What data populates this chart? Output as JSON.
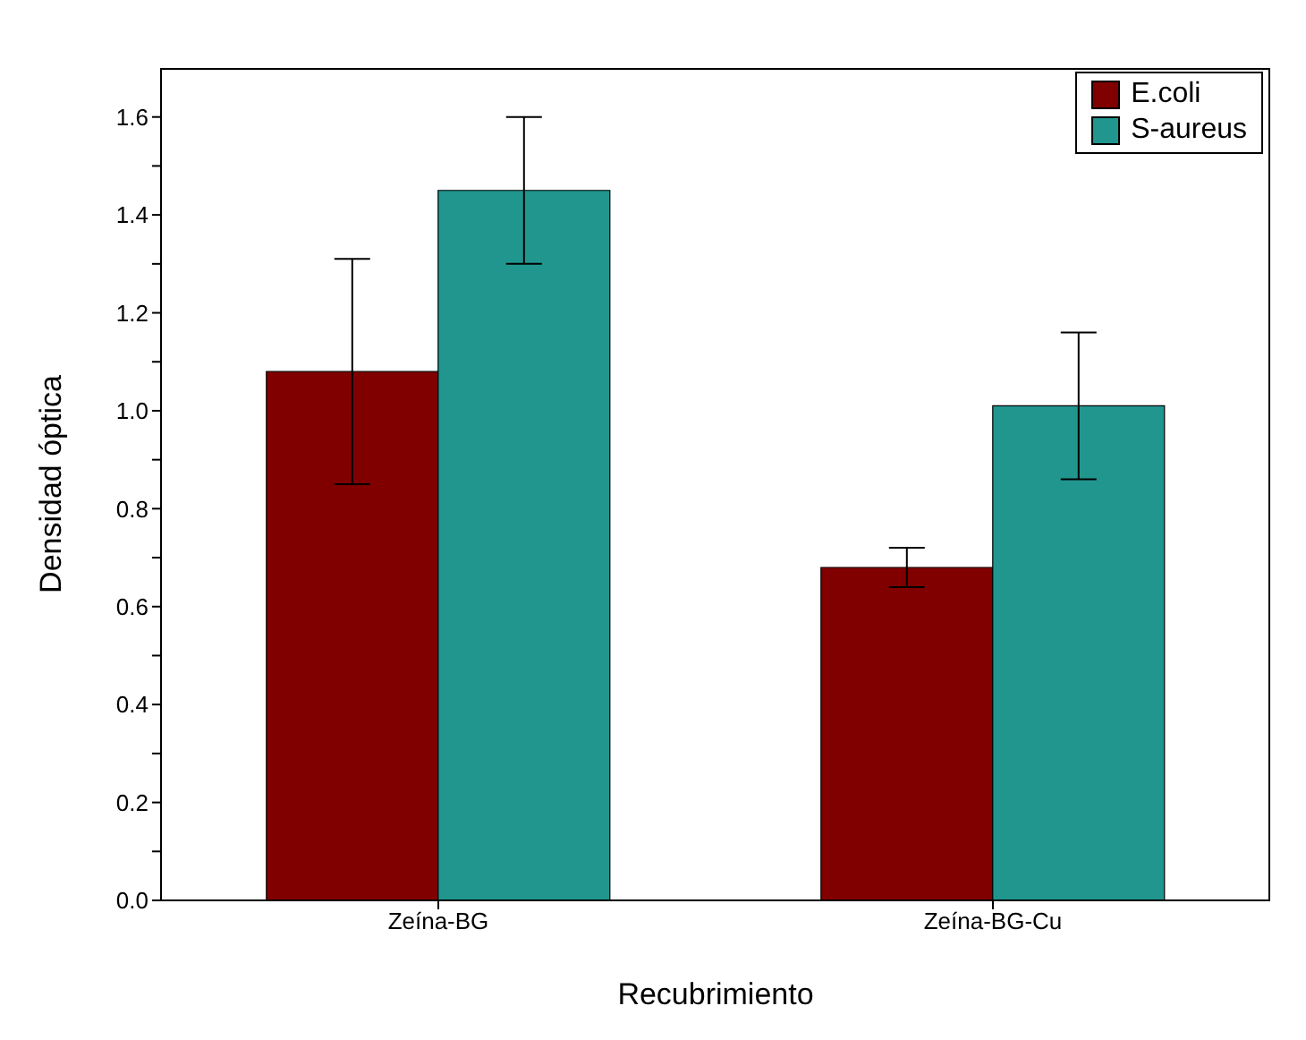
{
  "chart_data": {
    "type": "bar",
    "xlabel": "Recubrimiento",
    "ylabel": "Densidad óptica",
    "categories": [
      "Zeína-BG",
      "Zeína-BG-Cu"
    ],
    "series": [
      {
        "name": "E.coli",
        "color": "#800000",
        "values": [
          1.08,
          0.68
        ],
        "errors": [
          0.23,
          0.04
        ]
      },
      {
        "name": "S-aureus",
        "color": "#20968f",
        "values": [
          1.45,
          1.01
        ],
        "errors": [
          0.15,
          0.15
        ]
      }
    ],
    "ylim": [
      0,
      1.7
    ],
    "yticks": [
      {
        "value": 0,
        "label": "0.0"
      },
      {
        "value": 0.1,
        "label": null
      },
      0.2,
      {
        "value": 0.3,
        "label": null
      },
      0.4,
      {
        "value": 0.5,
        "label": null
      },
      0.6,
      {
        "value": 0.7,
        "label": null
      },
      0.8,
      {
        "value": 0.9,
        "label": null
      },
      {
        "value": 1,
        "label": "1.0"
      },
      {
        "value": 1.1,
        "label": null
      },
      1.2,
      {
        "value": 1.3,
        "label": null
      },
      1.4,
      {
        "value": 1.5,
        "label": null
      },
      1.6
    ],
    "grid": false,
    "legend": "top right"
  }
}
